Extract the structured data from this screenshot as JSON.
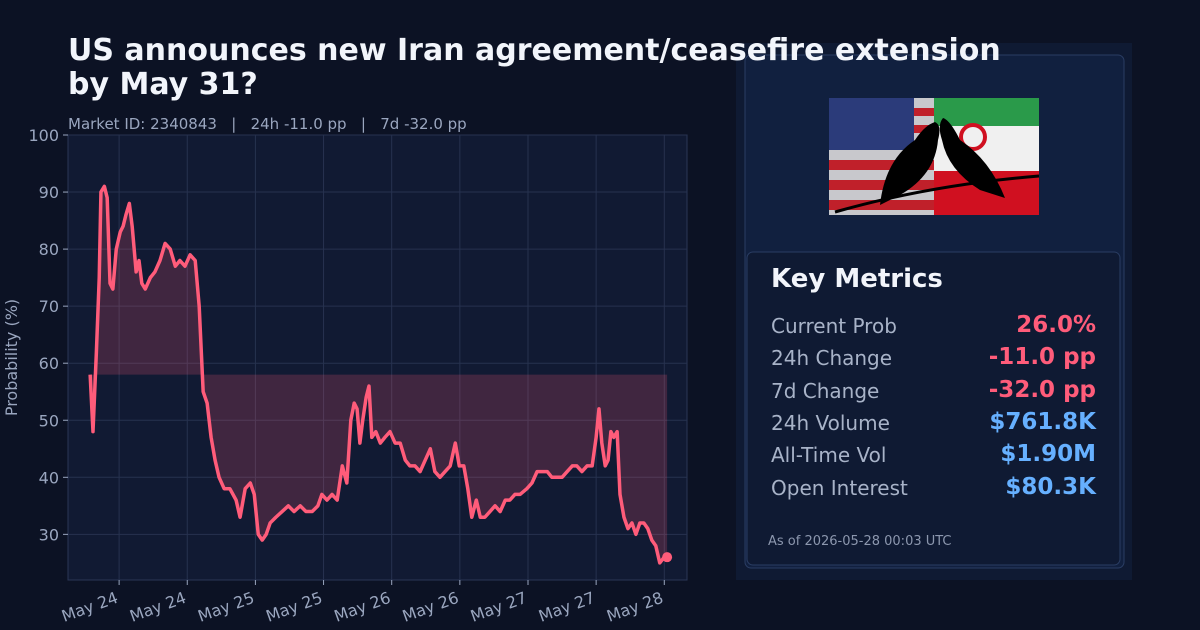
{
  "chart_data": {
    "type": "line",
    "title": "US announces new Iran agreement/ceasefire extension by May 31?",
    "subtitle": "Market ID: 2340843   |   24h -11.0 pp   |   7d -32.0 pp",
    "y_label": "Probability (%)",
    "color": "#ff5c7a",
    "fill_to_first": true,
    "grid": true,
    "x": [
      -5.1,
      -4.6,
      -4,
      -3.5,
      -3.2,
      -2.6,
      -2.1,
      -1.6,
      -1.1,
      -0.5,
      0.2,
      0.7,
      1.2,
      1.8,
      2.3,
      3,
      3.5,
      4,
      4.6,
      5.5,
      6.3,
      7.2,
      8.1,
      9,
      9.9,
      10.7,
      11.6,
      12.5,
      13.4,
      14.1,
      14.8,
      15.5,
      16.2,
      16.9,
      17.6,
      18.5,
      19.5,
      20.6,
      21.3,
      22.2,
      23.1,
      23.8,
      24.5,
      25.2,
      25.9,
      26.6,
      27.6,
      28.7,
      29.8,
      30.8,
      31.9,
      32.9,
      34,
      35,
      35.7,
      36.6,
      37.5,
      38.4,
      39.3,
      40.1,
      40.8,
      41.4,
      41.9,
      42.4,
      42.9,
      43.5,
      44,
      44.5,
      45.2,
      46,
      46.8,
      47.7,
      48.6,
      49.5,
      50.4,
      51.2,
      52.1,
      53,
      53.9,
      54.8,
      55.6,
      56.5,
      57.4,
      58.3,
      59.2,
      59.9,
      60.7,
      61.4,
      62.1,
      62.9,
      63.6,
      64.4,
      65.3,
      66.2,
      67.1,
      68,
      68.8,
      69.7,
      70.6,
      71.8,
      72.7,
      73.6,
      74.5,
      75.4,
      76.2,
      77.1,
      78,
      78.9,
      79.8,
      80.6,
      81.5,
      82.4,
      83.3,
      84,
      84.5,
      85,
      85.6,
      86.1,
      86.6,
      87.1,
      87.7,
      88.2,
      88.9,
      89.6,
      90.3,
      91,
      91.7,
      92.4,
      93.1,
      93.8,
      94.5,
      95.2,
      96,
      96.5
    ],
    "values": [
      58,
      48,
      62,
      75,
      90,
      91,
      89,
      74,
      73,
      80,
      83,
      84,
      86,
      88,
      84,
      76,
      78,
      74,
      73,
      75,
      76,
      78,
      81,
      80,
      77,
      78,
      77,
      79,
      78,
      70,
      55,
      53,
      47,
      43,
      40,
      38,
      38,
      36,
      33,
      38,
      39,
      37,
      30,
      29,
      30,
      32,
      33,
      34,
      35,
      34,
      35,
      34,
      34,
      35,
      37,
      36,
      37,
      36,
      42,
      39,
      50,
      53,
      52,
      46,
      50,
      54,
      56,
      47,
      48,
      46,
      47,
      48,
      46,
      46,
      43,
      42,
      42,
      41,
      43,
      45,
      41,
      40,
      41,
      42,
      46,
      42,
      42,
      38,
      33,
      36,
      33,
      33,
      34,
      35,
      34,
      36,
      36,
      37,
      37,
      38,
      39,
      41,
      41,
      41,
      40,
      40,
      40,
      41,
      42,
      42,
      41,
      42,
      42,
      47,
      52,
      46,
      42,
      43,
      48,
      47,
      48,
      37,
      33,
      31,
      32,
      30,
      32,
      32,
      31,
      29,
      28,
      25,
      26,
      26
    ],
    "xlim": [
      -9,
      100
    ],
    "xticks": [
      {
        "value": 0,
        "label": "May 24"
      },
      {
        "value": 12,
        "label": "May 24"
      },
      {
        "value": 24,
        "label": "May 25"
      },
      {
        "value": 36,
        "label": "May 25"
      },
      {
        "value": 48,
        "label": "May 26"
      },
      {
        "value": 60,
        "label": "May 26"
      },
      {
        "value": 72,
        "label": "May 27"
      },
      {
        "value": 84,
        "label": "May 27"
      },
      {
        "value": 96,
        "label": "May 28"
      }
    ],
    "ylim": [
      22,
      100
    ],
    "yticks": [
      30,
      40,
      50,
      60,
      70,
      80,
      90,
      100
    ]
  },
  "panel": {
    "title": "Key Metrics",
    "metrics": [
      {
        "label": "Current Prob",
        "value": "26.0%",
        "color": "#ff5c7a"
      },
      {
        "label": "24h Change",
        "value": "-11.0 pp",
        "color": "#ff5c7a"
      },
      {
        "label": "7d Change",
        "value": "-32.0 pp",
        "color": "#ff5c7a"
      },
      {
        "label": "24h Volume",
        "value": "$761.8K",
        "color": "#66b0ff"
      },
      {
        "label": "All-Time Vol",
        "value": "$1.90M",
        "color": "#66b0ff"
      },
      {
        "label": "Open Interest",
        "value": "$80.3K",
        "color": "#66b0ff"
      }
    ],
    "footer": "As of 2026-05-28 00:03 UTC"
  }
}
